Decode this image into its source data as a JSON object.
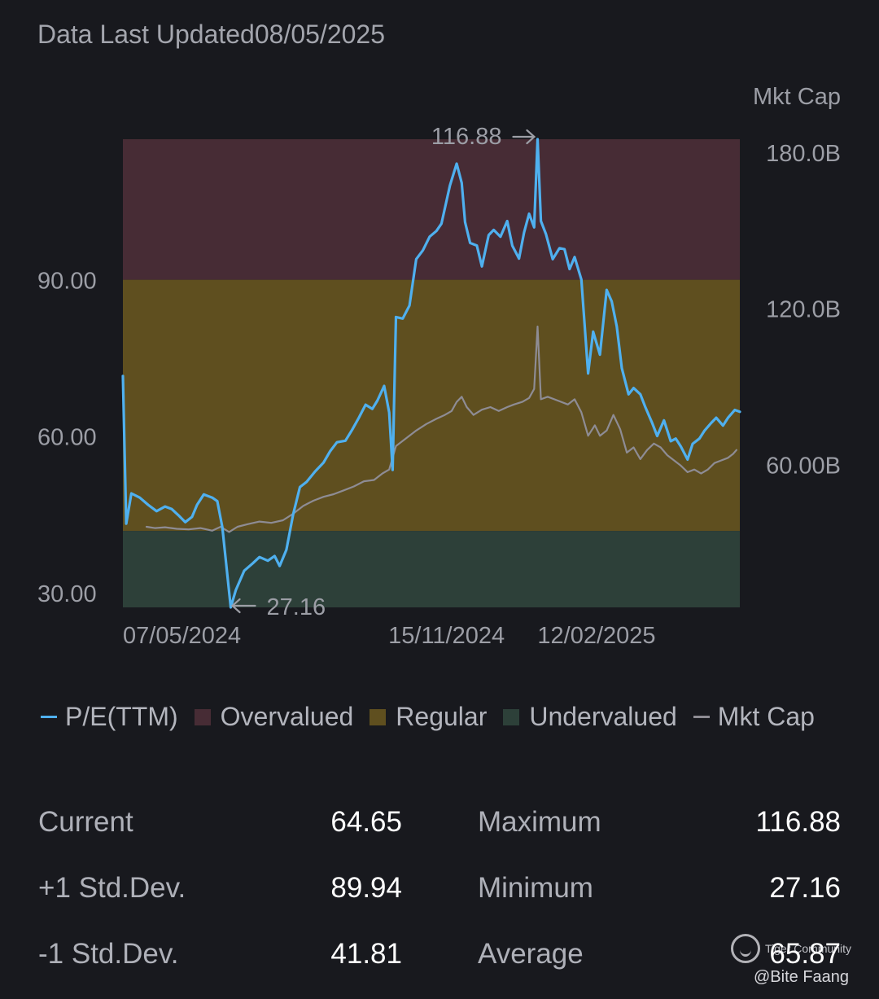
{
  "header": {
    "title": "Data Last Updated08/05/2025"
  },
  "colors": {
    "background": "#18191e",
    "pe_line": "#4fb0ef",
    "mktcap_line": "#8e8c94",
    "overvalued": "#472c35",
    "regular": "#5f4f1f",
    "undervalued": "#2d4039"
  },
  "chart_data": {
    "type": "line",
    "title": "",
    "y_left": {
      "range": [
        27.16,
        116.88
      ],
      "ticks": [
        "30.00",
        "60.00",
        "90.00"
      ],
      "tick_values": [
        30,
        60,
        90
      ]
    },
    "y_right": {
      "label": "Mkt Cap",
      "ticks": [
        "60.00B",
        "120.0B",
        "180.0B"
      ],
      "tick_values": [
        60,
        120,
        180
      ],
      "range": [
        5,
        185
      ]
    },
    "x_range": [
      "2024-05-07",
      "2025-05-08"
    ],
    "x_ticks": [
      {
        "label": "07/05/2024",
        "date": "2024-05-07",
        "anchor": "start"
      },
      {
        "label": "15/11/2024",
        "date": "2024-11-15",
        "anchor": "middle"
      },
      {
        "label": "12/02/2025",
        "date": "2025-02-12",
        "anchor": "middle"
      }
    ],
    "bands": [
      {
        "name": "Overvalued",
        "from": 89.94,
        "to": 116.88,
        "color": "#472c35"
      },
      {
        "name": "Regular",
        "from": 41.81,
        "to": 89.94,
        "color": "#5f4f1f"
      },
      {
        "name": "Undervalued",
        "from": 27.16,
        "to": 41.81,
        "color": "#2d4039"
      }
    ],
    "max_annotation": {
      "label": "116.88",
      "date": "2025-01-08",
      "value": 116.88
    },
    "min_annotation": {
      "label": "27.16",
      "date": "2024-07-10",
      "value": 27.16
    },
    "series": [
      {
        "name": "P/E(TTM)",
        "axis": "left",
        "color": "#4fb0ef",
        "points": [
          [
            "2024-05-07",
            71.5
          ],
          [
            "2024-05-09",
            43.2
          ],
          [
            "2024-05-12",
            49.0
          ],
          [
            "2024-05-17",
            48.2
          ],
          [
            "2024-05-22",
            46.8
          ],
          [
            "2024-05-27",
            45.6
          ],
          [
            "2024-06-01",
            46.5
          ],
          [
            "2024-06-05",
            46.0
          ],
          [
            "2024-06-09",
            44.8
          ],
          [
            "2024-06-13",
            43.5
          ],
          [
            "2024-06-17",
            44.5
          ],
          [
            "2024-06-20",
            46.8
          ],
          [
            "2024-06-24",
            48.8
          ],
          [
            "2024-06-29",
            48.2
          ],
          [
            "2024-07-02",
            47.5
          ],
          [
            "2024-07-05",
            42.5
          ],
          [
            "2024-07-10",
            27.16
          ],
          [
            "2024-07-13",
            30.5
          ],
          [
            "2024-07-18",
            34.2
          ],
          [
            "2024-07-23",
            35.6
          ],
          [
            "2024-07-27",
            36.8
          ],
          [
            "2024-08-01",
            36.1
          ],
          [
            "2024-08-05",
            37.0
          ],
          [
            "2024-08-08",
            35.1
          ],
          [
            "2024-08-12",
            38.2
          ],
          [
            "2024-08-16",
            45.0
          ],
          [
            "2024-08-20",
            50.2
          ],
          [
            "2024-08-24",
            51.2
          ],
          [
            "2024-08-29",
            53.2
          ],
          [
            "2024-09-03",
            54.9
          ],
          [
            "2024-09-07",
            57.1
          ],
          [
            "2024-09-11",
            58.8
          ],
          [
            "2024-09-16",
            59.1
          ],
          [
            "2024-09-20",
            61.2
          ],
          [
            "2024-09-24",
            63.5
          ],
          [
            "2024-09-28",
            66.0
          ],
          [
            "2024-10-02",
            65.2
          ],
          [
            "2024-10-05",
            66.8
          ],
          [
            "2024-10-09",
            69.6
          ],
          [
            "2024-10-12",
            64.5
          ],
          [
            "2024-10-14",
            53.5
          ],
          [
            "2024-10-16",
            82.8
          ],
          [
            "2024-10-20",
            82.5
          ],
          [
            "2024-10-24",
            85.0
          ],
          [
            "2024-10-28",
            93.9
          ],
          [
            "2024-11-01",
            95.6
          ],
          [
            "2024-11-05",
            98.2
          ],
          [
            "2024-11-09",
            99.3
          ],
          [
            "2024-11-12",
            100.7
          ],
          [
            "2024-11-17",
            108.0
          ],
          [
            "2024-11-21",
            112.2
          ],
          [
            "2024-11-24",
            108.5
          ],
          [
            "2024-11-26",
            101.0
          ],
          [
            "2024-11-29",
            97.0
          ],
          [
            "2024-12-03",
            96.5
          ],
          [
            "2024-12-06",
            92.5
          ],
          [
            "2024-12-10",
            98.5
          ],
          [
            "2024-12-13",
            99.5
          ],
          [
            "2024-12-17",
            98.2
          ],
          [
            "2024-12-21",
            101.2
          ],
          [
            "2024-12-24",
            96.5
          ],
          [
            "2024-12-28",
            94.0
          ],
          [
            "2024-12-31",
            99.0
          ],
          [
            "2025-01-03",
            102.6
          ],
          [
            "2025-01-06",
            100.0
          ],
          [
            "2025-01-08",
            116.88
          ],
          [
            "2025-01-10",
            101.2
          ],
          [
            "2025-01-13",
            98.7
          ],
          [
            "2025-01-17",
            93.9
          ],
          [
            "2025-01-21",
            96.0
          ],
          [
            "2025-01-24",
            95.8
          ],
          [
            "2025-01-27",
            92.0
          ],
          [
            "2025-01-30",
            94.3
          ],
          [
            "2025-02-03",
            90.0
          ],
          [
            "2025-02-07",
            72.0
          ],
          [
            "2025-02-10",
            80.0
          ],
          [
            "2025-02-14",
            75.6
          ],
          [
            "2025-02-18",
            88.0
          ],
          [
            "2025-02-21",
            85.8
          ],
          [
            "2025-02-24",
            81.0
          ],
          [
            "2025-02-27",
            73.0
          ],
          [
            "2025-03-03",
            68.0
          ],
          [
            "2025-03-06",
            69.2
          ],
          [
            "2025-03-10",
            68.0
          ],
          [
            "2025-03-13",
            65.5
          ],
          [
            "2025-03-17",
            62.5
          ],
          [
            "2025-03-20",
            60.0
          ],
          [
            "2025-03-24",
            63.0
          ],
          [
            "2025-03-28",
            59.0
          ],
          [
            "2025-03-31",
            59.5
          ],
          [
            "2025-04-03",
            58.0
          ],
          [
            "2025-04-07",
            55.5
          ],
          [
            "2025-04-10",
            58.5
          ],
          [
            "2025-04-14",
            59.5
          ],
          [
            "2025-04-17",
            61.0
          ],
          [
            "2025-04-21",
            62.5
          ],
          [
            "2025-04-24",
            63.5
          ],
          [
            "2025-04-28",
            62.0
          ],
          [
            "2025-05-01",
            63.5
          ],
          [
            "2025-05-05",
            65.0
          ],
          [
            "2025-05-08",
            64.65
          ]
        ]
      },
      {
        "name": "Mkt Cap",
        "axis": "right",
        "color": "#8e8c94",
        "points": [
          [
            "2024-05-21",
            36.0
          ],
          [
            "2024-05-26",
            35.5
          ],
          [
            "2024-06-01",
            35.8
          ],
          [
            "2024-06-08",
            35.2
          ],
          [
            "2024-06-15",
            35.0
          ],
          [
            "2024-06-22",
            35.5
          ],
          [
            "2024-06-29",
            34.5
          ],
          [
            "2024-07-04",
            36.0
          ],
          [
            "2024-07-09",
            34.0
          ],
          [
            "2024-07-14",
            36.0
          ],
          [
            "2024-07-20",
            37.0
          ],
          [
            "2024-07-27",
            38.0
          ],
          [
            "2024-08-03",
            37.5
          ],
          [
            "2024-08-10",
            38.5
          ],
          [
            "2024-08-16",
            41.0
          ],
          [
            "2024-08-22",
            44.0
          ],
          [
            "2024-08-28",
            46.0
          ],
          [
            "2024-09-03",
            47.5
          ],
          [
            "2024-09-09",
            48.5
          ],
          [
            "2024-09-15",
            50.0
          ],
          [
            "2024-09-21",
            51.5
          ],
          [
            "2024-09-27",
            53.5
          ],
          [
            "2024-10-03",
            54.0
          ],
          [
            "2024-10-08",
            56.5
          ],
          [
            "2024-10-12",
            58.0
          ],
          [
            "2024-10-16",
            67.0
          ],
          [
            "2024-10-22",
            70.0
          ],
          [
            "2024-10-28",
            73.0
          ],
          [
            "2024-11-03",
            75.5
          ],
          [
            "2024-11-09",
            77.5
          ],
          [
            "2024-11-14",
            79.0
          ],
          [
            "2024-11-18",
            80.5
          ],
          [
            "2024-11-21",
            84.0
          ],
          [
            "2024-11-24",
            86.0
          ],
          [
            "2024-11-27",
            82.0
          ],
          [
            "2024-12-01",
            79.0
          ],
          [
            "2024-12-06",
            81.0
          ],
          [
            "2024-12-11",
            82.0
          ],
          [
            "2024-12-16",
            80.5
          ],
          [
            "2024-12-21",
            82.0
          ],
          [
            "2024-12-25",
            83.0
          ],
          [
            "2024-12-30",
            84.0
          ],
          [
            "2025-01-03",
            85.5
          ],
          [
            "2025-01-06",
            89.0
          ],
          [
            "2025-01-08",
            113.0
          ],
          [
            "2025-01-10",
            85.0
          ],
          [
            "2025-01-14",
            86.0
          ],
          [
            "2025-01-20",
            84.5
          ],
          [
            "2025-01-26",
            83.0
          ],
          [
            "2025-01-30",
            85.0
          ],
          [
            "2025-02-03",
            80.0
          ],
          [
            "2025-02-07",
            71.0
          ],
          [
            "2025-02-11",
            75.0
          ],
          [
            "2025-02-14",
            71.0
          ],
          [
            "2025-02-18",
            73.0
          ],
          [
            "2025-02-22",
            79.0
          ],
          [
            "2025-02-26",
            73.5
          ],
          [
            "2025-03-02",
            64.5
          ],
          [
            "2025-03-06",
            66.5
          ],
          [
            "2025-03-10",
            62.0
          ],
          [
            "2025-03-14",
            65.5
          ],
          [
            "2025-03-18",
            68.0
          ],
          [
            "2025-03-22",
            66.5
          ],
          [
            "2025-03-26",
            63.5
          ],
          [
            "2025-03-30",
            61.5
          ],
          [
            "2025-04-03",
            59.5
          ],
          [
            "2025-04-07",
            57.0
          ],
          [
            "2025-04-11",
            58.0
          ],
          [
            "2025-04-15",
            56.5
          ],
          [
            "2025-04-19",
            58.0
          ],
          [
            "2025-04-23",
            60.5
          ],
          [
            "2025-04-27",
            61.5
          ],
          [
            "2025-05-01",
            62.5
          ],
          [
            "2025-05-04",
            64.0
          ],
          [
            "2025-05-06",
            65.5
          ]
        ]
      }
    ]
  },
  "legend": {
    "items": [
      {
        "kind": "line",
        "label": "P/E(TTM)",
        "color": "#4fb0ef"
      },
      {
        "kind": "box",
        "label": "Overvalued",
        "color": "#472c35"
      },
      {
        "kind": "box",
        "label": "Regular",
        "color": "#5f4f1f"
      },
      {
        "kind": "box",
        "label": "Undervalued",
        "color": "#2d4039"
      },
      {
        "kind": "line",
        "label": "Mkt Cap",
        "color": "#8e8c94"
      }
    ]
  },
  "stats": {
    "current_label": "Current",
    "current_value": "64.65",
    "plus1_label": "+1 Std.Dev.",
    "plus1_value": "89.94",
    "minus1_label": "-1 Std.Dev.",
    "minus1_value": "41.81",
    "max_label": "Maximum",
    "max_value": "116.88",
    "min_label": "Minimum",
    "min_value": "27.16",
    "avg_label": "Average",
    "avg_value": "65.87"
  },
  "watermark": {
    "brand": "Tiger Community",
    "icon": "tiger-logo-icon",
    "user": "@Bite Faang"
  }
}
